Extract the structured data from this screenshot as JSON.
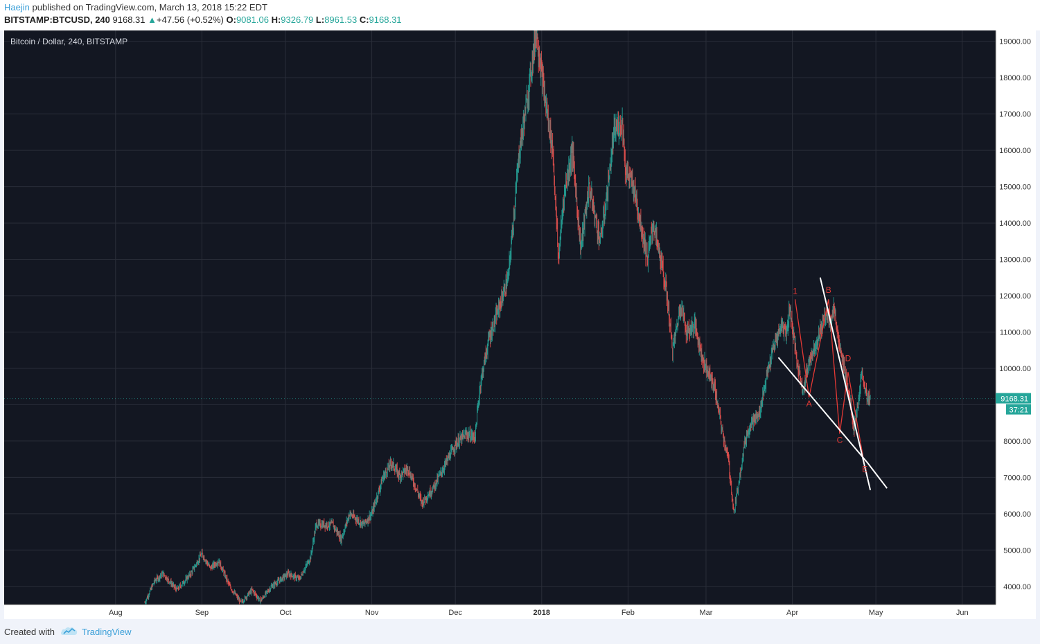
{
  "header": {
    "author": "Haejin",
    "published_text": "published on TradingView.com, March 13, 2018 15:22 EDT",
    "symbol": "BITSTAMP:BTCUSD, 240",
    "last": "9168.31",
    "change_arrow": "▲",
    "change": "+47.56 (+0.52%)",
    "o_label": "O:",
    "o_value": "9081.06",
    "h_label": "H:",
    "h_value": "9326.79",
    "l_label": "L:",
    "l_value": "8961.53",
    "c_label": "C:",
    "c_value": "9168.31"
  },
  "footer": {
    "created_with": "Created with",
    "brand": "TradingView",
    "logo_icon": "tradingview-cloud-icon"
  },
  "chart_data": {
    "type": "candlestick",
    "title": "Bitcoin / Dollar, 240, BITSTAMP",
    "background": "#131722",
    "up_color": "#26a69a",
    "down_color": "#ef5350",
    "y_axis": {
      "ylim": [
        3500,
        19300
      ],
      "ticks": [
        4000,
        5000,
        6000,
        7000,
        8000,
        9000,
        10000,
        11000,
        12000,
        13000,
        14000,
        15000,
        16000,
        17000,
        18000,
        19000
      ],
      "tick_labels": [
        "4000.00",
        "5000.00",
        "6000.00",
        "7000.00",
        "8000.00",
        "",
        "10000.00",
        "11000.00",
        "12000.00",
        "13000.00",
        "14000.00",
        "15000.00",
        "16000.00",
        "17000.00",
        "18000.00",
        "19000.00"
      ]
    },
    "x_axis": {
      "xlim": [
        -40,
        316
      ],
      "ticks": [
        0,
        31,
        61,
        92,
        122,
        153,
        184,
        212,
        243,
        273,
        304
      ],
      "tick_labels": [
        "Aug",
        "Sep",
        "Oct",
        "Nov",
        "Dec",
        "2018",
        "Feb",
        "Mar",
        "Apr",
        "May",
        "Jun"
      ],
      "bold_labels": [
        "2018"
      ]
    },
    "price_key_points": [
      [
        10.5,
        3550
      ],
      [
        14,
        4150
      ],
      [
        17,
        4350
      ],
      [
        22,
        3900
      ],
      [
        27,
        4350
      ],
      [
        31,
        4900
      ],
      [
        34,
        4500
      ],
      [
        37,
        4700
      ],
      [
        41,
        4000
      ],
      [
        45,
        3550
      ],
      [
        49,
        3900
      ],
      [
        52,
        3600
      ],
      [
        56,
        4000
      ],
      [
        62,
        4350
      ],
      [
        66,
        4200
      ],
      [
        70,
        4800
      ],
      [
        72,
        5700
      ],
      [
        78,
        5700
      ],
      [
        81,
        5300
      ],
      [
        84,
        6000
      ],
      [
        89,
        5700
      ],
      [
        92,
        6000
      ],
      [
        96,
        7000
      ],
      [
        99,
        7400
      ],
      [
        102,
        7050
      ],
      [
        105,
        7250
      ],
      [
        110,
        6300
      ],
      [
        114,
        6700
      ],
      [
        118,
        7300
      ],
      [
        122,
        7900
      ],
      [
        126,
        8200
      ],
      [
        129,
        8100
      ],
      [
        131,
        9600
      ],
      [
        134,
        10800
      ],
      [
        137,
        11500
      ],
      [
        141,
        12500
      ],
      [
        145,
        16000
      ],
      [
        148,
        17500
      ],
      [
        151,
        19300
      ],
      [
        154,
        17500
      ],
      [
        157,
        16000
      ],
      [
        159,
        13000
      ],
      [
        161,
        14800
      ],
      [
        164,
        16000
      ],
      [
        167,
        13300
      ],
      [
        170,
        15000
      ],
      [
        174,
        13500
      ],
      [
        176,
        14500
      ],
      [
        179,
        16500
      ],
      [
        182,
        16800
      ],
      [
        183,
        15500
      ],
      [
        186,
        15000
      ],
      [
        189,
        13800
      ],
      [
        191,
        13000
      ],
      [
        193,
        14000
      ],
      [
        196,
        12900
      ],
      [
        198,
        12000
      ],
      [
        200,
        10500
      ],
      [
        203,
        11800
      ],
      [
        205,
        11000
      ],
      [
        208,
        11200
      ],
      [
        211,
        10200
      ],
      [
        215,
        9500
      ],
      [
        218,
        8200
      ],
      [
        220,
        7500
      ],
      [
        222,
        6000
      ],
      [
        224,
        7000
      ],
      [
        226,
        8000
      ],
      [
        228,
        8500
      ],
      [
        231,
        8700
      ],
      [
        233,
        9500
      ],
      [
        236,
        10500
      ],
      [
        239,
        11200
      ],
      [
        241,
        11000
      ],
      [
        242,
        11700
      ],
      [
        245,
        10000
      ],
      [
        247,
        9400
      ],
      [
        249,
        10200
      ],
      [
        252,
        10800
      ],
      [
        255,
        11500
      ],
      [
        257,
        11300
      ],
      [
        258,
        11700
      ],
      [
        260,
        10500
      ],
      [
        262,
        9900
      ],
      [
        264,
        9000
      ],
      [
        265,
        8300
      ],
      [
        267,
        9200
      ],
      [
        268,
        9900
      ],
      [
        270,
        9100
      ],
      [
        271,
        9168
      ]
    ],
    "candle_count": 1490,
    "annotations": {
      "labels": [
        {
          "text": "1",
          "x": 244,
          "y": 12050
        },
        {
          "text": "B",
          "x": 256,
          "y": 12080
        },
        {
          "text": "A",
          "x": 249,
          "y": 8950
        },
        {
          "text": "D",
          "x": 263,
          "y": 10200
        },
        {
          "text": "C",
          "x": 260,
          "y": 7950
        },
        {
          "text": "E",
          "x": 269,
          "y": 7150
        }
      ],
      "wave_path": [
        [
          244,
          11900
        ],
        [
          249,
          9200
        ],
        [
          256,
          11900
        ],
        [
          260,
          8200
        ],
        [
          263,
          9900
        ],
        [
          269,
          7300
        ]
      ],
      "lower_trendline": [
        [
          238,
          10300
        ],
        [
          270,
          7400
        ]
      ],
      "upper_trendline": [
        [
          253,
          12500
        ],
        [
          271,
          6650
        ]
      ],
      "lower_to_apex": [
        [
          270,
          7400
        ],
        [
          277,
          6700
        ]
      ]
    },
    "current_price_label": "9168.31",
    "countdown_label": "37:21",
    "price_label_color": "#26a69a"
  }
}
